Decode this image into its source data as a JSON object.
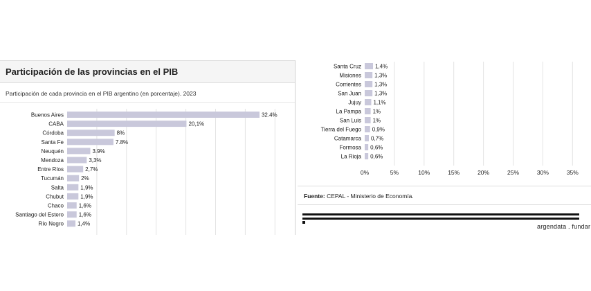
{
  "header": {
    "title": "Participación de las provincias en el PIB",
    "subtitle": "Participación de cada provincia en el PIB argentino (en porcentaje). 2023"
  },
  "source": {
    "label": "Fuente:",
    "text": "CEPAL - Ministerio de Economía."
  },
  "brand": {
    "text": "argendata . fundar"
  },
  "colors": {
    "bar": "#c9c8db",
    "grid": "#e3e3e3",
    "text": "#1a1a1a"
  },
  "chart_data": [
    {
      "type": "bar",
      "orientation": "horizontal",
      "categories": [
        "Buenos Aires",
        "CABA",
        "Córdoba",
        "Santa Fe",
        "Neuquén",
        "Mendoza",
        "Entre Ríos",
        "Tucumán",
        "Salta",
        "Chubut",
        "Chaco",
        "Santiago del Estero",
        "Río Negro"
      ],
      "values": [
        32.4,
        20.1,
        8,
        7.8,
        3.9,
        3.3,
        2.7,
        2,
        1.9,
        1.9,
        1.6,
        1.6,
        1.4
      ],
      "labels": [
        "32.4%",
        "20,1%",
        "8%",
        "7.8%",
        "3.9%",
        "3,3%",
        "2,7%",
        "2%",
        "1,9%",
        "1,9%",
        "1,6%",
        "1,6%",
        "1,4%"
      ],
      "xlim": [
        0,
        35
      ],
      "grid": true
    },
    {
      "type": "bar",
      "orientation": "horizontal",
      "categories": [
        "Santa Cruz",
        "Misiones",
        "Corrientes",
        "San Juan",
        "Jujuy",
        "La Pampa",
        "San Luis",
        "Tierra del Fuego",
        "Catamarca",
        "Formosa",
        "La Rioja"
      ],
      "values": [
        1.4,
        1.3,
        1.3,
        1.3,
        1.1,
        1,
        1,
        0.9,
        0.7,
        0.6,
        0.6
      ],
      "labels": [
        "1,4%",
        "1,3%",
        "1,3%",
        "1,3%",
        "1,1%",
        "1%",
        "1%",
        "0,9%",
        "0,7%",
        "0,6%",
        "0,6%"
      ],
      "xlim": [
        0,
        35
      ],
      "xticks": [
        "0%",
        "5%",
        "10%",
        "15%",
        "20%",
        "25%",
        "30%",
        "35%"
      ],
      "grid": true
    }
  ]
}
